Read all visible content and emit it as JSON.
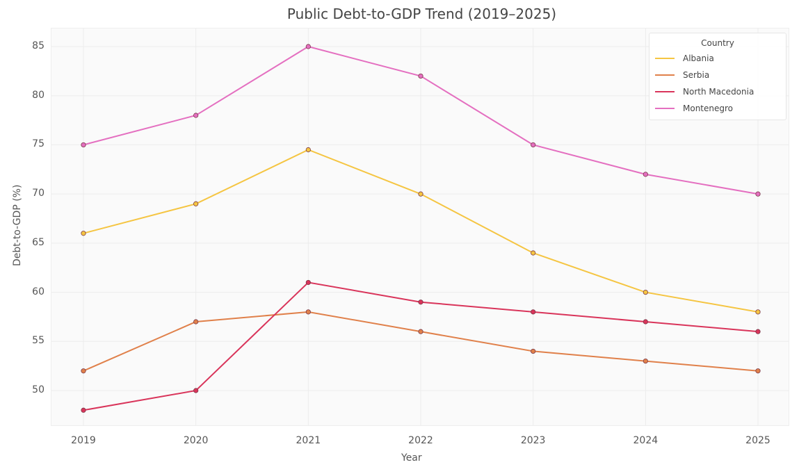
{
  "chart_data": {
    "type": "line",
    "title": "Public Debt-to-GDP Trend (2019–2025)",
    "xlabel": "Year",
    "ylabel": "Debt-to-GDP (%)",
    "x": [
      2019,
      2020,
      2021,
      2022,
      2023,
      2024,
      2025
    ],
    "yticks": [
      50,
      55,
      60,
      65,
      70,
      75,
      80,
      85
    ],
    "ylim": [
      46,
      86.5
    ],
    "grid": true,
    "legend_title": "Country",
    "legend_position": "upper right",
    "series": [
      {
        "name": "Albania",
        "color": "#f5c542",
        "values": [
          66,
          69,
          74.5,
          70,
          64,
          60,
          58
        ]
      },
      {
        "name": "Serbia",
        "color": "#e0804a",
        "values": [
          52,
          57,
          58,
          56,
          54,
          53,
          52
        ]
      },
      {
        "name": "North Macedonia",
        "color": "#d9345a",
        "values": [
          48,
          50,
          61,
          59,
          58,
          57,
          56
        ]
      },
      {
        "name": "Montenegro",
        "color": "#e46fc0",
        "values": [
          75,
          78,
          85,
          82,
          75,
          72,
          70
        ]
      }
    ]
  },
  "labels": {
    "title": "Public Debt-to-GDP Trend (2019–2025)",
    "xlabel": "Year",
    "ylabel": "Debt-to-GDP (%)",
    "legend_title": "Country"
  }
}
